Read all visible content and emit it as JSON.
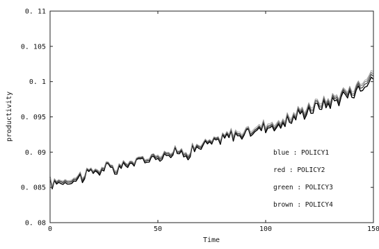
{
  "chart_data": {
    "type": "line",
    "title": "",
    "xlabel": "Time",
    "ylabel": "productivity",
    "xlim": [
      0,
      150
    ],
    "ylim": [
      0.08,
      0.11
    ],
    "x_ticks": [
      0,
      50,
      100,
      150
    ],
    "x_tick_labels": [
      "0",
      "50",
      "100",
      "150"
    ],
    "y_ticks": [
      0.08,
      0.085,
      0.09,
      0.095,
      0.1,
      0.105,
      0.11
    ],
    "y_tick_labels": [
      "0. 08",
      "0. 085",
      "0. 09",
      "0. 095",
      "0. 1",
      "0. 105",
      "0. 11"
    ],
    "grid": false,
    "legend_placement": "lower-right",
    "legend_entries": [
      "blue : POLICY1",
      "red : POLICY2",
      "green : POLICY3",
      "brown : POLICY4"
    ],
    "series": [
      {
        "name": "POLICY1",
        "color": "#000000",
        "x": [
          0,
          5,
          10,
          15,
          20,
          25,
          30,
          35,
          40,
          45,
          50,
          55,
          60,
          65,
          70,
          75,
          80,
          85,
          90,
          95,
          100,
          105,
          110,
          115,
          120,
          125,
          130,
          135,
          140,
          145,
          150
        ],
        "y": [
          0.0855,
          0.0858,
          0.086,
          0.0866,
          0.0872,
          0.0876,
          0.0874,
          0.0881,
          0.0886,
          0.0888,
          0.0896,
          0.0898,
          0.0898,
          0.0901,
          0.0908,
          0.0911,
          0.0918,
          0.0925,
          0.0924,
          0.093,
          0.0938,
          0.0936,
          0.0943,
          0.0952,
          0.096,
          0.0965,
          0.097,
          0.0978,
          0.0985,
          0.0992,
          0.1008
        ]
      },
      {
        "name": "POLICY2",
        "color": "#333333",
        "x": [
          0,
          5,
          10,
          15,
          20,
          25,
          30,
          35,
          40,
          45,
          50,
          55,
          60,
          65,
          70,
          75,
          80,
          85,
          90,
          95,
          100,
          105,
          110,
          115,
          120,
          125,
          130,
          135,
          140,
          145,
          150
        ],
        "y": [
          0.0856,
          0.086,
          0.0862,
          0.0868,
          0.0873,
          0.0878,
          0.0876,
          0.0883,
          0.0887,
          0.089,
          0.0898,
          0.09,
          0.09,
          0.0903,
          0.091,
          0.0913,
          0.092,
          0.0927,
          0.0926,
          0.0932,
          0.094,
          0.0938,
          0.0945,
          0.0954,
          0.0963,
          0.0968,
          0.0973,
          0.0981,
          0.0988,
          0.0996,
          0.1012
        ]
      },
      {
        "name": "POLICY3",
        "color": "#666666",
        "x": [
          0,
          5,
          10,
          15,
          20,
          25,
          30,
          35,
          40,
          45,
          50,
          55,
          60,
          65,
          70,
          75,
          80,
          85,
          90,
          95,
          100,
          105,
          110,
          115,
          120,
          125,
          130,
          135,
          140,
          145,
          150
        ],
        "y": [
          0.0857,
          0.0861,
          0.0863,
          0.0869,
          0.0874,
          0.0879,
          0.0877,
          0.0884,
          0.0888,
          0.0891,
          0.0899,
          0.0901,
          0.0901,
          0.0904,
          0.0911,
          0.0914,
          0.0921,
          0.0928,
          0.0927,
          0.0933,
          0.0941,
          0.094,
          0.0947,
          0.0956,
          0.0965,
          0.097,
          0.0975,
          0.0983,
          0.099,
          0.0999,
          0.1015
        ]
      },
      {
        "name": "POLICY4",
        "color": "#999999",
        "x": [
          0,
          5,
          10,
          15,
          20,
          25,
          30,
          35,
          40,
          45,
          50,
          55,
          60,
          65,
          70,
          75,
          80,
          85,
          90,
          95,
          100,
          105,
          110,
          115,
          120,
          125,
          130,
          135,
          140,
          145,
          150
        ],
        "y": [
          0.0858,
          0.0862,
          0.0864,
          0.087,
          0.0875,
          0.088,
          0.0878,
          0.0885,
          0.0889,
          0.0892,
          0.09,
          0.0902,
          0.0902,
          0.0905,
          0.0912,
          0.0915,
          0.0922,
          0.093,
          0.0929,
          0.0935,
          0.0943,
          0.0942,
          0.0949,
          0.0958,
          0.0967,
          0.0972,
          0.0977,
          0.0985,
          0.0992,
          0.1001,
          0.1018
        ]
      }
    ]
  }
}
